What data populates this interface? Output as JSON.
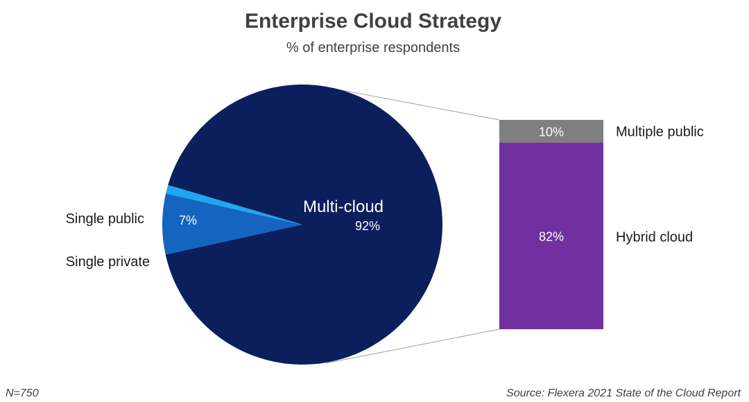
{
  "chart_data": {
    "type": "pie",
    "title": "Enterprise Cloud Strategy",
    "subtitle": "% of enterprise respondents",
    "slices": [
      {
        "label": "Single public",
        "value": 7,
        "value_label": "7%",
        "color": "#1565c0"
      },
      {
        "label": "Single private",
        "value": 1,
        "value_label": "",
        "color": "#1ea7f0"
      },
      {
        "label": "Multi-cloud",
        "value": 92,
        "value_label": "92%",
        "color": "#0a1f5c"
      }
    ],
    "breakdown": {
      "of": "Multi-cloud",
      "segments": [
        {
          "label": "Multiple public",
          "value": 10,
          "value_label": "10%",
          "color": "#7f7f7f"
        },
        {
          "label": "Hybrid cloud",
          "value": 82,
          "value_label": "82%",
          "color": "#7030a0"
        }
      ]
    },
    "footnote_left": "N=750",
    "footnote_right": "Source: Flexera 2021 State of the Cloud Report"
  }
}
